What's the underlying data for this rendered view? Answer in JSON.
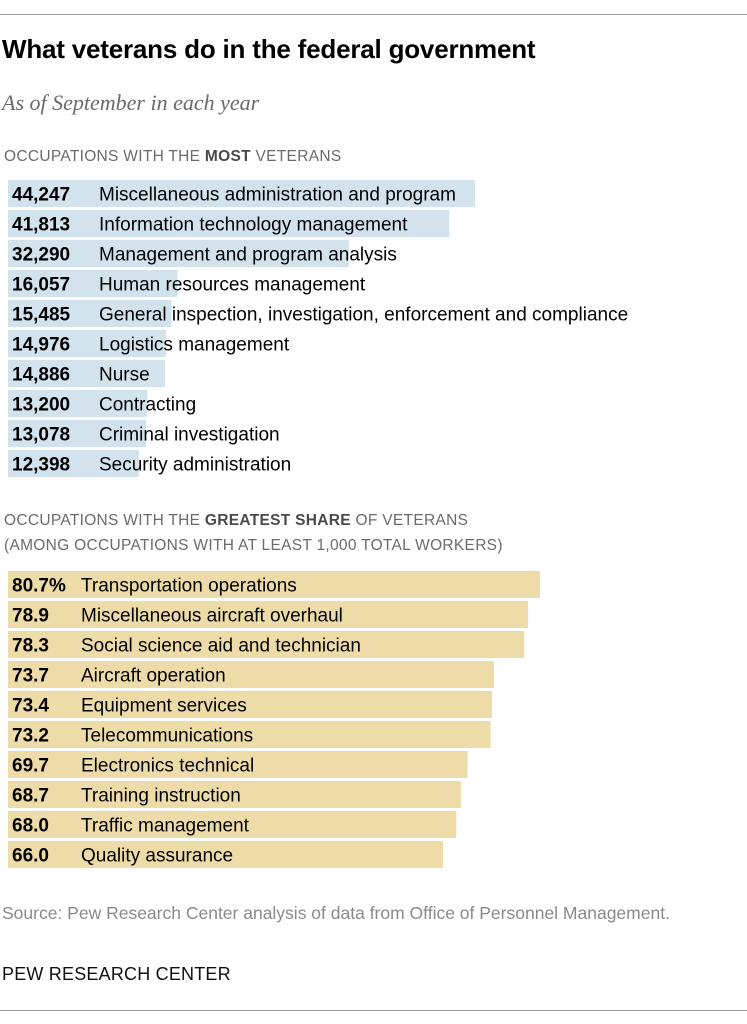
{
  "header": {
    "title": "What veterans do in the federal government",
    "subtitle": "As of September in each year"
  },
  "colors": {
    "most_bar": "#d3e3ed",
    "share_bar": "#eedca8"
  },
  "chart_data": [
    {
      "type": "bar",
      "orientation": "horizontal",
      "section_title_pre": "OCCUPATIONS WITH THE ",
      "section_title_bold": "MOST",
      "section_title_post": " VETERANS",
      "value_labels": [
        "44,247",
        "41,813",
        "32,290",
        "16,057",
        "15,485",
        "14,976",
        "14,886",
        "13,200",
        "13,078",
        "12,398"
      ],
      "categories": [
        "Miscellaneous administration and program",
        "Information technology management",
        "Management and program analysis",
        "Human resources management",
        "General inspection, investigation, enforcement and compliance",
        "Logistics management",
        "Nurse",
        "Contracting",
        "Criminal investigation",
        "Security administration"
      ],
      "values": [
        44247,
        41813,
        32290,
        16057,
        15485,
        14976,
        14886,
        13200,
        13078,
        12398
      ],
      "xlim": [
        0,
        44247
      ]
    },
    {
      "type": "bar",
      "orientation": "horizontal",
      "section_title_pre": "OCCUPATIONS WITH THE ",
      "section_title_bold": "GREATEST SHARE",
      "section_title_post": " OF VETERANS",
      "section_subtitle": "(AMONG OCCUPATIONS WITH AT LEAST 1,000 TOTAL WORKERS)",
      "value_labels": [
        "80.7%",
        "78.9",
        "78.3",
        "73.7",
        "73.4",
        "73.2",
        "69.7",
        "68.7",
        "68.0",
        "66.0"
      ],
      "categories": [
        "Transportation operations",
        "Miscellaneous aircraft overhaul",
        "Social science aid and technician",
        "Aircraft operation",
        "Equipment services",
        "Telecommunications",
        "Electronics technical",
        "Training instruction",
        "Traffic management",
        "Quality assurance"
      ],
      "values": [
        80.7,
        78.9,
        78.3,
        73.7,
        73.4,
        73.2,
        69.7,
        68.7,
        68.0,
        66.0
      ],
      "xlim": [
        0,
        80.7
      ]
    }
  ],
  "footer": {
    "source": "Source: Pew Research Center analysis of data from Office of Personnel Management.",
    "brand": "PEW RESEARCH CENTER"
  }
}
